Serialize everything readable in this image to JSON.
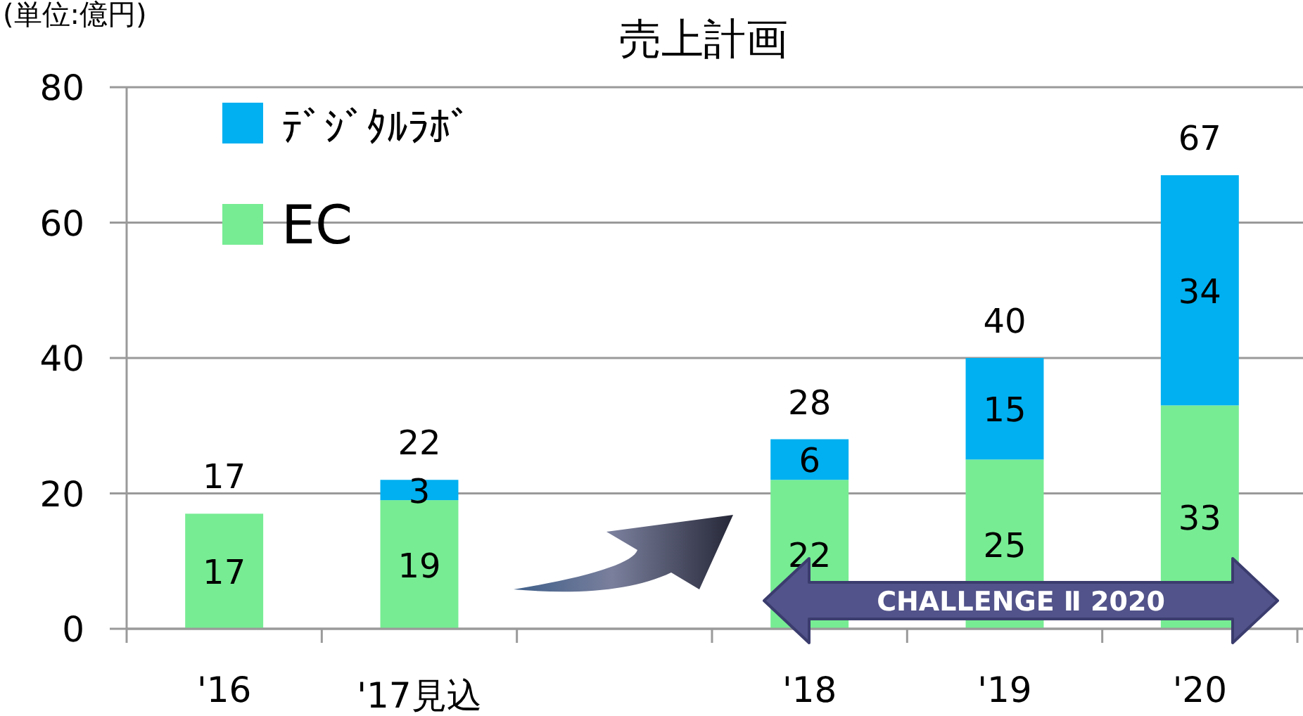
{
  "chart_data": {
    "type": "bar",
    "title": "売上計画",
    "ylabel": "(単位:億円)",
    "stacked": true,
    "categories": [
      "'16",
      "'17見込",
      null,
      "'18",
      "'19",
      "'20"
    ],
    "series": [
      {
        "name": "EC",
        "color": "#77ec93",
        "values": [
          17,
          19,
          null,
          22,
          25,
          33
        ]
      },
      {
        "name": "ﾃﾞｼﾞﾀﾙﾗﾎﾞ",
        "color": "#00b0f0",
        "values": [
          null,
          3,
          null,
          6,
          15,
          34
        ]
      }
    ],
    "data_labels": true,
    "totals": [
      "17",
      "22",
      null,
      "28",
      "40",
      "67"
    ],
    "ylim": [
      0,
      80
    ],
    "yticks": [
      0,
      20,
      40,
      60,
      80
    ],
    "grid": "y",
    "legend": "top left",
    "annotations": [
      "CHALLENGE Ⅱ 2020"
    ]
  }
}
